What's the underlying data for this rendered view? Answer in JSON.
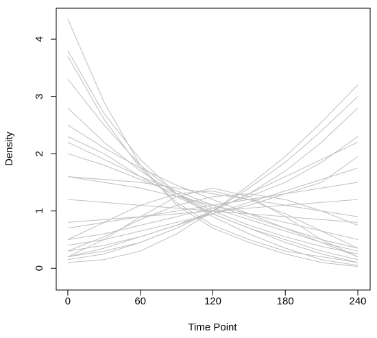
{
  "chart_data": {
    "type": "line",
    "x_label": "Time Point",
    "y_label": "Density",
    "x": [
      0,
      30,
      60,
      90,
      120,
      150,
      180,
      210,
      240
    ],
    "color": "#bebebe",
    "xlim": [
      -9.6,
      250.2
    ],
    "ylim": [
      -0.38,
      4.54
    ],
    "xticks": [
      0,
      60,
      120,
      180,
      240
    ],
    "yticks": [
      0,
      1,
      2,
      3,
      4
    ],
    "series": [
      {
        "values": [
          4.35,
          2.9,
          1.8,
          1.1,
          0.7,
          0.45,
          0.25,
          0.1,
          0.03
        ]
      },
      {
        "values": [
          3.8,
          2.7,
          1.9,
          1.3,
          0.9,
          0.6,
          0.35,
          0.15,
          0.05
        ]
      },
      {
        "values": [
          3.3,
          2.5,
          1.8,
          1.3,
          0.95,
          0.7,
          0.45,
          0.25,
          0.1
        ]
      },
      {
        "values": [
          2.8,
          2.2,
          1.7,
          1.3,
          1.0,
          0.75,
          0.55,
          0.38,
          0.25
        ]
      },
      {
        "values": [
          2.5,
          2.1,
          1.75,
          1.45,
          1.2,
          0.95,
          0.7,
          0.45,
          0.2
        ]
      },
      {
        "values": [
          2.2,
          1.9,
          1.6,
          1.35,
          1.1,
          0.9,
          0.7,
          0.5,
          0.35
        ]
      },
      {
        "values": [
          2.0,
          1.8,
          1.55,
          1.3,
          1.05,
          0.85,
          0.65,
          0.45,
          0.3
        ]
      },
      {
        "values": [
          1.6,
          1.5,
          1.4,
          1.25,
          1.1,
          0.95,
          0.8,
          0.65,
          0.5
        ]
      },
      {
        "values": [
          0.1,
          0.15,
          0.3,
          0.6,
          1.0,
          1.45,
          1.95,
          2.55,
          3.2
        ]
      },
      {
        "values": [
          0.2,
          0.3,
          0.45,
          0.7,
          1.0,
          1.4,
          1.85,
          2.4,
          3.0
        ]
      },
      {
        "values": [
          0.3,
          0.4,
          0.55,
          0.75,
          1.0,
          1.3,
          1.7,
          2.2,
          2.8
        ]
      },
      {
        "values": [
          0.5,
          0.6,
          0.75,
          0.9,
          1.05,
          1.25,
          1.5,
          1.85,
          2.3
        ]
      },
      {
        "values": [
          0.2,
          0.35,
          0.55,
          0.75,
          0.95,
          1.15,
          1.35,
          1.55,
          1.75
        ]
      },
      {
        "values": [
          0.7,
          0.8,
          0.9,
          1.0,
          1.1,
          1.2,
          1.3,
          1.4,
          1.5
        ]
      },
      {
        "values": [
          0.4,
          0.5,
          0.65,
          0.8,
          0.95,
          1.1,
          1.3,
          1.5,
          1.95
        ]
      },
      {
        "values": [
          0.2,
          0.5,
          0.9,
          1.25,
          1.4,
          1.25,
          0.9,
          0.5,
          0.2
        ]
      },
      {
        "values": [
          0.5,
          0.8,
          1.1,
          1.3,
          1.35,
          1.2,
          0.95,
          0.65,
          0.35
        ]
      },
      {
        "values": [
          0.3,
          0.55,
          0.85,
          1.1,
          1.25,
          1.3,
          1.2,
          1.0,
          0.75
        ]
      },
      {
        "values": [
          1.6,
          1.55,
          1.5,
          1.4,
          1.3,
          1.2,
          1.1,
          1.0,
          0.9
        ]
      },
      {
        "values": [
          1.2,
          1.15,
          1.1,
          1.05,
          1.0,
          0.95,
          0.9,
          0.85,
          0.8
        ]
      },
      {
        "values": [
          0.8,
          0.85,
          0.9,
          0.95,
          1.0,
          1.05,
          1.1,
          1.15,
          1.2
        ]
      },
      {
        "values": [
          2.3,
          2.0,
          1.6,
          1.25,
          0.95,
          0.7,
          0.5,
          0.3,
          0.15
        ]
      },
      {
        "values": [
          3.7,
          2.6,
          1.75,
          1.15,
          0.75,
          0.5,
          0.3,
          0.2,
          0.1
        ]
      },
      {
        "values": [
          0.15,
          0.25,
          0.45,
          0.7,
          1.0,
          1.3,
          1.6,
          1.9,
          2.2
        ]
      }
    ]
  }
}
